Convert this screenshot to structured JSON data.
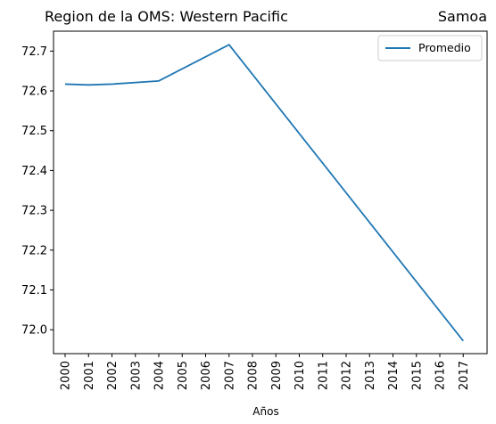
{
  "chart_data": {
    "type": "line",
    "title_left": "Region de la OMS: Western Pacific",
    "title_right": "Samoa",
    "xlabel": "Años",
    "ylabel": "",
    "x": [
      "2000",
      "2001",
      "2002",
      "2003",
      "2004",
      "2005",
      "2006",
      "2007",
      "2008",
      "2009",
      "2010",
      "2011",
      "2012",
      "2013",
      "2014",
      "2015",
      "2016",
      "2017"
    ],
    "series": [
      {
        "name": "Promedio",
        "color": "#1f77b4",
        "points": [
          {
            "x": "2000",
            "y": 72.617
          },
          {
            "x": "2001",
            "y": 72.615
          },
          {
            "x": "2002",
            "y": 72.617
          },
          {
            "x": "2004",
            "y": 72.625
          },
          {
            "x": "2007",
            "y": 72.716
          },
          {
            "x": "2017",
            "y": 71.972
          }
        ]
      }
    ],
    "yticks": [
      "72.0",
      "72.1",
      "72.2",
      "72.3",
      "72.4",
      "72.5",
      "72.6",
      "72.7"
    ],
    "ylim": [
      71.94,
      72.75
    ],
    "grid": false,
    "legend_position": "top-right"
  }
}
